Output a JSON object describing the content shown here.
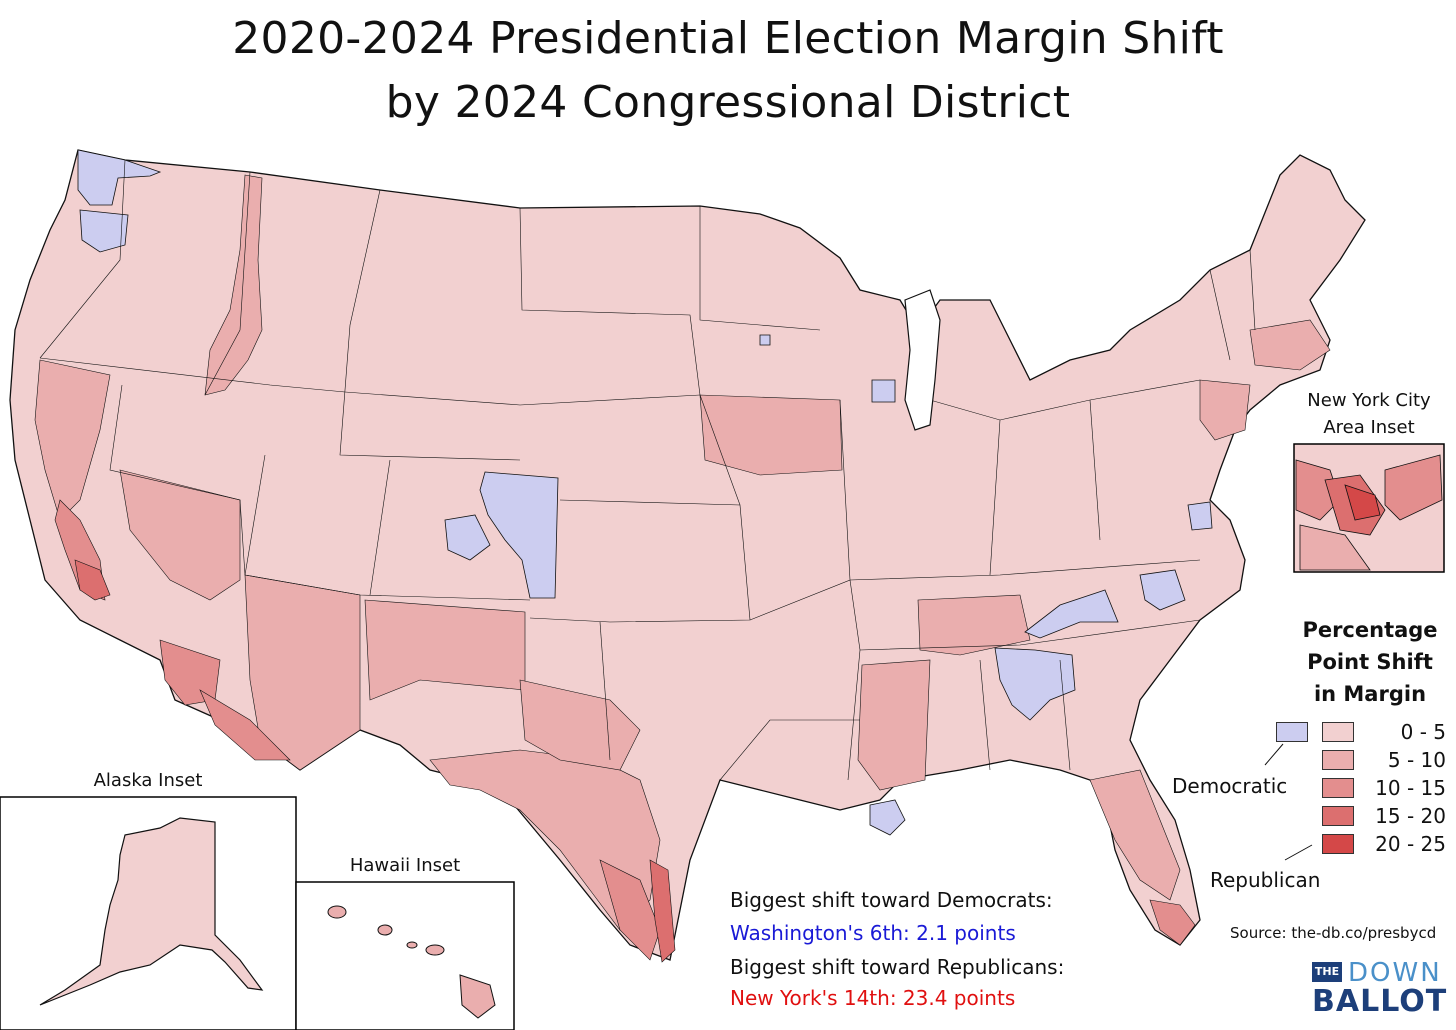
{
  "title_line1": "2020-2024 Presidential Election Margin Shift",
  "title_line2": "by 2024 Congressional District",
  "insets": {
    "nyc": "New York City\nArea Inset",
    "nyc_line1": "New York City",
    "nyc_line2": "Area Inset",
    "alaska": "Alaska Inset",
    "hawaii": "Hawaii Inset"
  },
  "legend": {
    "title_line1": "Percentage",
    "title_line2": "Point Shift",
    "title_line3": "in Margin",
    "democratic_label": "Democratic",
    "republican_label": "Republican",
    "democratic_color": "#cccdf0",
    "bins": [
      {
        "label": "0 -  5",
        "color": "#f2d0d0"
      },
      {
        "label": "5 - 10",
        "color": "#eaaeae"
      },
      {
        "label": "10 - 15",
        "color": "#e38e8e"
      },
      {
        "label": "15 - 20",
        "color": "#dc6f6f"
      },
      {
        "label": "20 - 25",
        "color": "#d44848"
      }
    ]
  },
  "callouts": {
    "dem_heading": "Biggest shift toward Democrats:",
    "dem_value": "Washington's 6th: 2.1 points",
    "dem_color": "#1a1ad6",
    "rep_heading": "Biggest shift toward Republicans:",
    "rep_value": "New York's 14th: 23.4 points",
    "rep_color": "#e01010"
  },
  "source": "Source: the-db.co/presbycd",
  "logo": {
    "the": "THE",
    "down": "DOWN",
    "ballot": "BALLOT"
  }
}
